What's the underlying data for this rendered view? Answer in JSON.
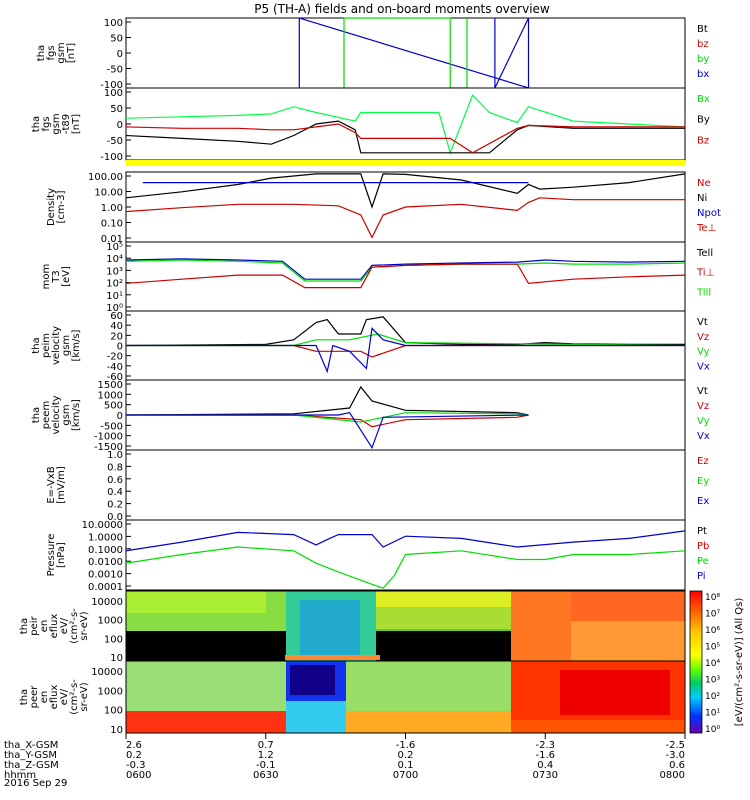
{
  "title": "P5 (TH-A) fields and on-board moments overview",
  "colors": {
    "black": "#000000",
    "red": "#cc0000",
    "green": "#00dd00",
    "blue": "#0000cc",
    "yellow": "#ffff00",
    "bright_green": "#00ff44"
  },
  "chart_data": [
    {
      "type": "line",
      "id": "fgs",
      "ylabel": [
        "tha",
        "fgs",
        "gsm",
        "[nT]"
      ],
      "yticks": [
        "100",
        "50",
        "0",
        "-50",
        "-100"
      ],
      "ylim": [
        -100,
        100
      ],
      "legend": [
        {
          "text": "Bt",
          "color": "#000000"
        },
        {
          "text": "bz",
          "color": "#cc0000"
        },
        {
          "text": "by",
          "color": "#00dd00"
        },
        {
          "text": "bx",
          "color": "#0000cc"
        }
      ],
      "series": [
        {
          "name": "bx",
          "color": "#0000cc",
          "x": [
            0.31,
            0.31,
            0.72,
            0.72,
            0.66,
            0.66
          ],
          "y": [
            -100,
            100,
            -100,
            100,
            -100,
            100
          ]
        },
        {
          "name": "by",
          "color": "#00dd00",
          "x": [
            0.39,
            0.39,
            0.58,
            0.58,
            0.61,
            0.61
          ],
          "y": [
            -100,
            100,
            100,
            -100,
            -100,
            100
          ]
        }
      ]
    },
    {
      "type": "line",
      "id": "fgs_tlf",
      "ylabel": [
        "tha",
        "fgs",
        "gsm",
        "-t89",
        "[nT]"
      ],
      "yticks": [
        "100",
        "50",
        "0",
        "-50",
        "-100"
      ],
      "ylim": [
        -125,
        125
      ],
      "legend": [
        {
          "text": "Bx",
          "color": "#00dd00"
        },
        {
          "text": "By",
          "color": "#000000"
        },
        {
          "text": "Bz",
          "color": "#cc0000"
        }
      ],
      "series": [
        {
          "name": "",
          "color": "#00ff44",
          "x": [
            0,
            0.1,
            0.2,
            0.26,
            0.3,
            0.34,
            0.41,
            0.42,
            0.56,
            0.58,
            0.62,
            0.65,
            0.7,
            0.72,
            0.8,
            1.0
          ],
          "y": [
            20,
            25,
            30,
            35,
            60,
            40,
            10,
            40,
            40,
            -100,
            100,
            40,
            5,
            60,
            10,
            -10
          ]
        },
        {
          "name": "",
          "color": "#000000",
          "x": [
            0,
            0.1,
            0.2,
            0.26,
            0.3,
            0.34,
            0.38,
            0.41,
            0.42,
            0.56,
            0.58,
            0.62,
            0.65,
            0.7,
            0.72,
            0.8,
            1.0
          ],
          "y": [
            -40,
            -50,
            -60,
            -70,
            -40,
            0,
            10,
            -20,
            -100,
            -100,
            -100,
            -100,
            -100,
            -20,
            -5,
            -15,
            -15
          ]
        },
        {
          "name": "",
          "color": "#cc0000",
          "x": [
            0,
            0.1,
            0.2,
            0.26,
            0.3,
            0.34,
            0.38,
            0.41,
            0.42,
            0.58,
            0.62,
            0.7,
            0.72,
            0.8,
            1.0
          ],
          "y": [
            -10,
            -15,
            -15,
            -20,
            -20,
            -10,
            0,
            -30,
            -50,
            -50,
            -100,
            -15,
            -5,
            -10,
            -10
          ]
        }
      ]
    },
    {
      "type": "line",
      "id": "density",
      "log": true,
      "ylabel": [
        "Density",
        "[cm-3]"
      ],
      "yticks": [
        "100.00",
        "10.00",
        "1.00",
        "0.10",
        "0.01"
      ],
      "ylim": [
        0.005,
        200
      ],
      "legend": [
        {
          "text": "Ne",
          "color": "#cc0000"
        },
        {
          "text": "Ni",
          "color": "#000000"
        },
        {
          "text": "Npot",
          "color": "#0000cc"
        },
        {
          "text": "Te⊥",
          "color": "#cc0000"
        }
      ],
      "series": [
        {
          "name": "Ne",
          "color": "#cc0000",
          "x": [
            0,
            0.1,
            0.2,
            0.3,
            0.38,
            0.42,
            0.44,
            0.46,
            0.5,
            0.6,
            0.7,
            0.72,
            0.74,
            0.8,
            0.9,
            1.0
          ],
          "y": [
            0.5,
            0.9,
            1.5,
            1.5,
            1.2,
            0.3,
            0.01,
            0.3,
            1.0,
            1.5,
            0.6,
            2,
            4,
            3,
            3,
            3
          ]
        },
        {
          "name": "Ni",
          "color": "#000000",
          "x": [
            0,
            0.1,
            0.2,
            0.26,
            0.34,
            0.42,
            0.44,
            0.46,
            0.5,
            0.6,
            0.7,
            0.72,
            0.74,
            0.8,
            0.9,
            1.0
          ],
          "y": [
            4,
            10,
            30,
            80,
            150,
            150,
            1,
            150,
            140,
            60,
            8,
            30,
            15,
            20,
            40,
            150
          ]
        },
        {
          "name": "Npot",
          "color": "#0000cc",
          "x": [
            0.03,
            0.26,
            0.49,
            0.72
          ],
          "y": [
            40,
            40,
            40,
            40
          ]
        }
      ]
    },
    {
      "type": "line",
      "id": "temp",
      "log": true,
      "ylabel": [
        "mom",
        "T3",
        "[eV]"
      ],
      "yticks": [
        "10⁵",
        "10⁴",
        "10³",
        "10²",
        "10¹",
        "10⁰"
      ],
      "ylim": [
        1,
        100000
      ],
      "legend": [
        {
          "text": "Tell",
          "color": "#000000"
        },
        {
          "text": "Ti⊥",
          "color": "#cc0000"
        },
        {
          "text": "Till",
          "color": "#00dd00"
        }
      ],
      "series": [
        {
          "name": "Ti",
          "color": "#0000cc",
          "x": [
            0,
            0.1,
            0.2,
            0.28,
            0.32,
            0.42,
            0.44,
            0.5,
            0.6,
            0.7,
            0.75,
            0.8,
            0.9,
            1.0
          ],
          "y": [
            5000,
            6000,
            5000,
            4000,
            200,
            200,
            2000,
            2500,
            3000,
            3500,
            5000,
            4000,
            3500,
            4000
          ]
        },
        {
          "name": "Tell",
          "color": "#00dd00",
          "x": [
            0,
            0.1,
            0.2,
            0.28,
            0.32,
            0.42,
            0.44,
            0.5,
            0.6,
            0.7,
            0.75,
            0.8,
            0.9,
            1.0
          ],
          "y": [
            4000,
            5000,
            4000,
            3000,
            150,
            150,
            1500,
            2000,
            2500,
            2500,
            3000,
            2500,
            2500,
            3000
          ]
        },
        {
          "name": "Te",
          "color": "#cc0000",
          "x": [
            0,
            0.1,
            0.2,
            0.28,
            0.32,
            0.42,
            0.44,
            0.5,
            0.6,
            0.7,
            0.72,
            0.8,
            0.9,
            1.0
          ],
          "y": [
            100,
            200,
            400,
            400,
            50,
            50,
            1500,
            2000,
            2500,
            2500,
            100,
            200,
            300,
            400
          ]
        }
      ]
    },
    {
      "type": "line",
      "id": "peim",
      "ylabel": [
        "tha",
        "peim",
        "velocity",
        "gsm",
        "[km/s]"
      ],
      "yticks": [
        "60",
        "40",
        "20",
        "0",
        "-20",
        "-40",
        "-60"
      ],
      "ylim": [
        -60,
        60
      ],
      "legend": [
        {
          "text": "Vt",
          "color": "#000000"
        },
        {
          "text": "Vz",
          "color": "#cc0000"
        },
        {
          "text": "Vy",
          "color": "#00dd00"
        },
        {
          "text": "Vx",
          "color": "#0000cc"
        }
      ],
      "series": [
        {
          "name": "Vt",
          "color": "#000000",
          "x": [
            0,
            0.25,
            0.3,
            0.34,
            0.36,
            0.38,
            0.42,
            0.43,
            0.46,
            0.5,
            0.6,
            0.7,
            0.75,
            0.8,
            0.9,
            1.0
          ],
          "y": [
            0,
            2,
            10,
            40,
            45,
            20,
            20,
            45,
            50,
            5,
            2,
            2,
            5,
            3,
            2,
            2
          ]
        },
        {
          "name": "Vz",
          "color": "#cc0000",
          "x": [
            0,
            0.3,
            0.34,
            0.38,
            0.42,
            0.44,
            0.5,
            1.0
          ],
          "y": [
            0,
            0,
            -10,
            -10,
            -10,
            -20,
            0,
            0
          ]
        },
        {
          "name": "Vy",
          "color": "#00dd00",
          "x": [
            0,
            0.3,
            0.34,
            0.4,
            0.45,
            0.5,
            1.0
          ],
          "y": [
            0,
            0,
            10,
            10,
            20,
            5,
            0
          ]
        },
        {
          "name": "Vx",
          "color": "#0000cc",
          "x": [
            0,
            0.34,
            0.36,
            0.37,
            0.4,
            0.43,
            0.44,
            0.46,
            0.5,
            1.0
          ],
          "y": [
            0,
            0,
            -45,
            0,
            -10,
            -40,
            30,
            10,
            0,
            0
          ]
        }
      ]
    },
    {
      "type": "line",
      "id": "peem",
      "ylabel": [
        "tha",
        "peem",
        "velocity",
        "gsm",
        "[km/s]"
      ],
      "yticks": [
        "1500",
        "1000",
        "500",
        "0",
        "-500",
        "-1000",
        "-1500"
      ],
      "ylim": [
        -1500,
        1500
      ],
      "legend": [
        {
          "text": "Vt",
          "color": "#000000"
        },
        {
          "text": "Vz",
          "color": "#cc0000"
        },
        {
          "text": "Vy",
          "color": "#00dd00"
        },
        {
          "text": "Vx",
          "color": "#0000cc"
        }
      ],
      "series": [
        {
          "name": "Vt",
          "color": "#000000",
          "x": [
            0,
            0.3,
            0.4,
            0.42,
            0.44,
            0.5,
            0.7,
            0.72
          ],
          "y": [
            0,
            50,
            300,
            1200,
            600,
            200,
            100,
            0
          ]
        },
        {
          "name": "Vz",
          "color": "#cc0000",
          "x": [
            0,
            0.3,
            0.42,
            0.44,
            0.5,
            0.7,
            0.72
          ],
          "y": [
            0,
            0,
            -200,
            -500,
            -200,
            -100,
            0
          ]
        },
        {
          "name": "Vy",
          "color": "#00dd00",
          "x": [
            0,
            0.3,
            0.42,
            0.44,
            0.5,
            0.7,
            0.72
          ],
          "y": [
            0,
            0,
            -300,
            -200,
            100,
            50,
            0
          ]
        },
        {
          "name": "Vx",
          "color": "#0000cc",
          "x": [
            0,
            0.38,
            0.4,
            0.44,
            0.46,
            0.72
          ],
          "y": [
            0,
            0,
            100,
            -1400,
            -100,
            0
          ]
        }
      ]
    },
    {
      "type": "line",
      "id": "efield",
      "ylabel": [
        "E=-VxB",
        "[mV/m]"
      ],
      "yticks": [
        "1.0",
        "0.8",
        "0.6",
        "0.4",
        "0.2",
        "0.0"
      ],
      "ylim": [
        0,
        1
      ],
      "legend": [
        {
          "text": "Ez",
          "color": "#cc0000"
        },
        {
          "text": "Ey",
          "color": "#00dd00"
        },
        {
          "text": "Ex",
          "color": "#0000cc"
        }
      ],
      "series": []
    },
    {
      "type": "line",
      "id": "pressure",
      "log": true,
      "ylabel": [
        "Pressure",
        "[nPa]"
      ],
      "yticks": [
        "10.0000",
        "1.0000",
        "0.1000",
        "0.0100",
        "0.0010",
        "0.0001"
      ],
      "ylim": [
        7e-05,
        30
      ],
      "legend": [
        {
          "text": "Pt",
          "color": "#000000"
        },
        {
          "text": "Pb",
          "color": "#cc0000"
        },
        {
          "text": "Pe",
          "color": "#00dd00"
        },
        {
          "text": "Pi",
          "color": "#0000cc"
        }
      ],
      "series": [
        {
          "name": "Pi",
          "color": "#0000cc",
          "x": [
            0,
            0.1,
            0.2,
            0.3,
            0.34,
            0.36,
            0.38,
            0.44,
            0.46,
            0.5,
            0.6,
            0.7,
            0.8,
            0.9,
            1.0
          ],
          "y": [
            0.1,
            0.5,
            3,
            2,
            0.3,
            0.8,
            2,
            2,
            0.2,
            1.5,
            1,
            0.2,
            0.5,
            1,
            4
          ]
        },
        {
          "name": "Pe",
          "color": "#00dd00",
          "x": [
            0,
            0.1,
            0.2,
            0.3,
            0.34,
            0.38,
            0.44,
            0.46,
            0.48,
            0.5,
            0.6,
            0.7,
            0.75,
            0.8,
            0.9,
            1.0
          ],
          "y": [
            0.01,
            0.05,
            0.2,
            0.1,
            0.01,
            0.002,
            0.0002,
            0.0001,
            0.001,
            0.05,
            0.1,
            0.02,
            0.02,
            0.05,
            0.05,
            0.1
          ]
        }
      ]
    },
    {
      "type": "heatmap",
      "id": "peir",
      "ylabel": [
        "tha",
        "peir",
        "en",
        "eflux",
        "eV/",
        "(cm²-s-",
        "sr-eV)"
      ],
      "yticks": [
        "10000",
        "1000",
        "100",
        "10"
      ],
      "ylim": [
        5,
        30000
      ]
    },
    {
      "type": "heatmap",
      "id": "peer",
      "ylabel": [
        "tha",
        "peer",
        "en",
        "eflux",
        "eV/",
        "(cm²-s-",
        "sr-eV)"
      ],
      "yticks": [
        "10000",
        "1000",
        "100",
        "10"
      ],
      "ylim": [
        5,
        30000
      ]
    }
  ],
  "colorbar": {
    "ticks": [
      "10⁸",
      "10⁷",
      "10⁶",
      "10⁵",
      "10⁴",
      "10³",
      "10²",
      "10¹",
      "10⁰"
    ],
    "ticks2": [
      "10⁸",
      "10⁷",
      "10⁶",
      "10⁵",
      "10⁴",
      "10³",
      "10²",
      "10¹",
      "10⁰"
    ],
    "label": "[eV/(cm²-s-sr-eV)] (All Qs)"
  },
  "time_axis": {
    "rows": [
      {
        "label": "tha_X-GSM",
        "values": [
          "2.6",
          "0.7",
          "-1.6",
          "-2.3",
          "-2.5"
        ]
      },
      {
        "label": "tha_Y-GSM",
        "values": [
          "0.2",
          "1.2",
          "0.2",
          "-1.6",
          "-3.0"
        ]
      },
      {
        "label": "tha_Z-GSM",
        "values": [
          "-0.3",
          "-0.1",
          "0.1",
          "0.4",
          "0.6"
        ]
      },
      {
        "label": "hhmm",
        "values": [
          "0600",
          "0630",
          "0700",
          "0730",
          "0800"
        ]
      }
    ],
    "date": "2016 Sep 29"
  }
}
